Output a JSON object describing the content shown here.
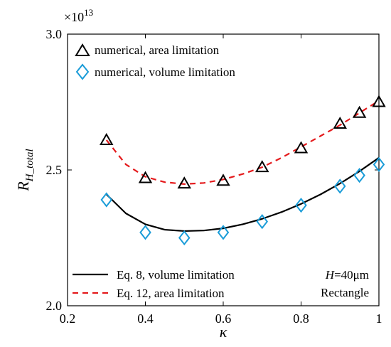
{
  "chart_data": {
    "type": "scatter",
    "title": "",
    "xlabel": "κ",
    "ylabel_main": "R",
    "ylabel_sub": "H_total",
    "y_multiplier": {
      "base": "×10",
      "exp": "13"
    },
    "xlim": [
      0.2,
      1.0
    ],
    "ylim": [
      2.0,
      3.0
    ],
    "x_ticks": [
      0.2,
      0.4,
      0.6,
      0.8,
      1.0
    ],
    "x_tick_labels": [
      "0.2",
      "0.4",
      "0.6",
      "0.8",
      "1"
    ],
    "y_ticks": [
      2.0,
      2.5,
      3.0
    ],
    "y_tick_labels": [
      "2.0",
      "2.5",
      "3.0"
    ],
    "grid": false,
    "series": [
      {
        "name": "numerical, area limitation",
        "kind": "marker",
        "marker": "triangle",
        "color": "#000000",
        "x": [
          0.3,
          0.4,
          0.5,
          0.6,
          0.7,
          0.8,
          0.9,
          0.95,
          1.0
        ],
        "y": [
          2.61,
          2.47,
          2.45,
          2.46,
          2.51,
          2.58,
          2.67,
          2.71,
          2.75
        ]
      },
      {
        "name": "numerical, volume limitation",
        "kind": "marker",
        "marker": "diamond",
        "color": "#1a9cd8",
        "x": [
          0.3,
          0.4,
          0.5,
          0.6,
          0.7,
          0.8,
          0.9,
          0.95,
          1.0
        ],
        "y": [
          2.39,
          2.27,
          2.25,
          2.27,
          2.31,
          2.37,
          2.44,
          2.48,
          2.52
        ]
      },
      {
        "name": "Eq. 8, volume limitation",
        "kind": "line",
        "dash": "solid",
        "color": "#000000",
        "x": [
          0.3,
          0.35,
          0.4,
          0.45,
          0.5,
          0.55,
          0.6,
          0.65,
          0.7,
          0.75,
          0.8,
          0.85,
          0.9,
          0.95,
          1.0
        ],
        "y": [
          2.41,
          2.34,
          2.3,
          2.28,
          2.275,
          2.277,
          2.285,
          2.3,
          2.32,
          2.345,
          2.375,
          2.41,
          2.45,
          2.495,
          2.545
        ]
      },
      {
        "name": "Eq. 12, area limitation",
        "kind": "line",
        "dash": "dashed",
        "color": "#e41a1c",
        "x": [
          0.3,
          0.35,
          0.4,
          0.45,
          0.5,
          0.55,
          0.6,
          0.65,
          0.7,
          0.75,
          0.8,
          0.85,
          0.9,
          0.95,
          1.0
        ],
        "y": [
          2.61,
          2.52,
          2.475,
          2.455,
          2.448,
          2.452,
          2.465,
          2.485,
          2.51,
          2.545,
          2.585,
          2.625,
          2.665,
          2.71,
          2.755
        ]
      }
    ],
    "legend_top": [
      "numerical, area limitation",
      "numerical, volume limitation"
    ],
    "legend_bottom": [
      "Eq. 8, volume limitation",
      "Eq. 12, area limitation"
    ],
    "annotation": {
      "var": "H",
      "text": "=40μm",
      "line2": "Rectangle"
    }
  }
}
